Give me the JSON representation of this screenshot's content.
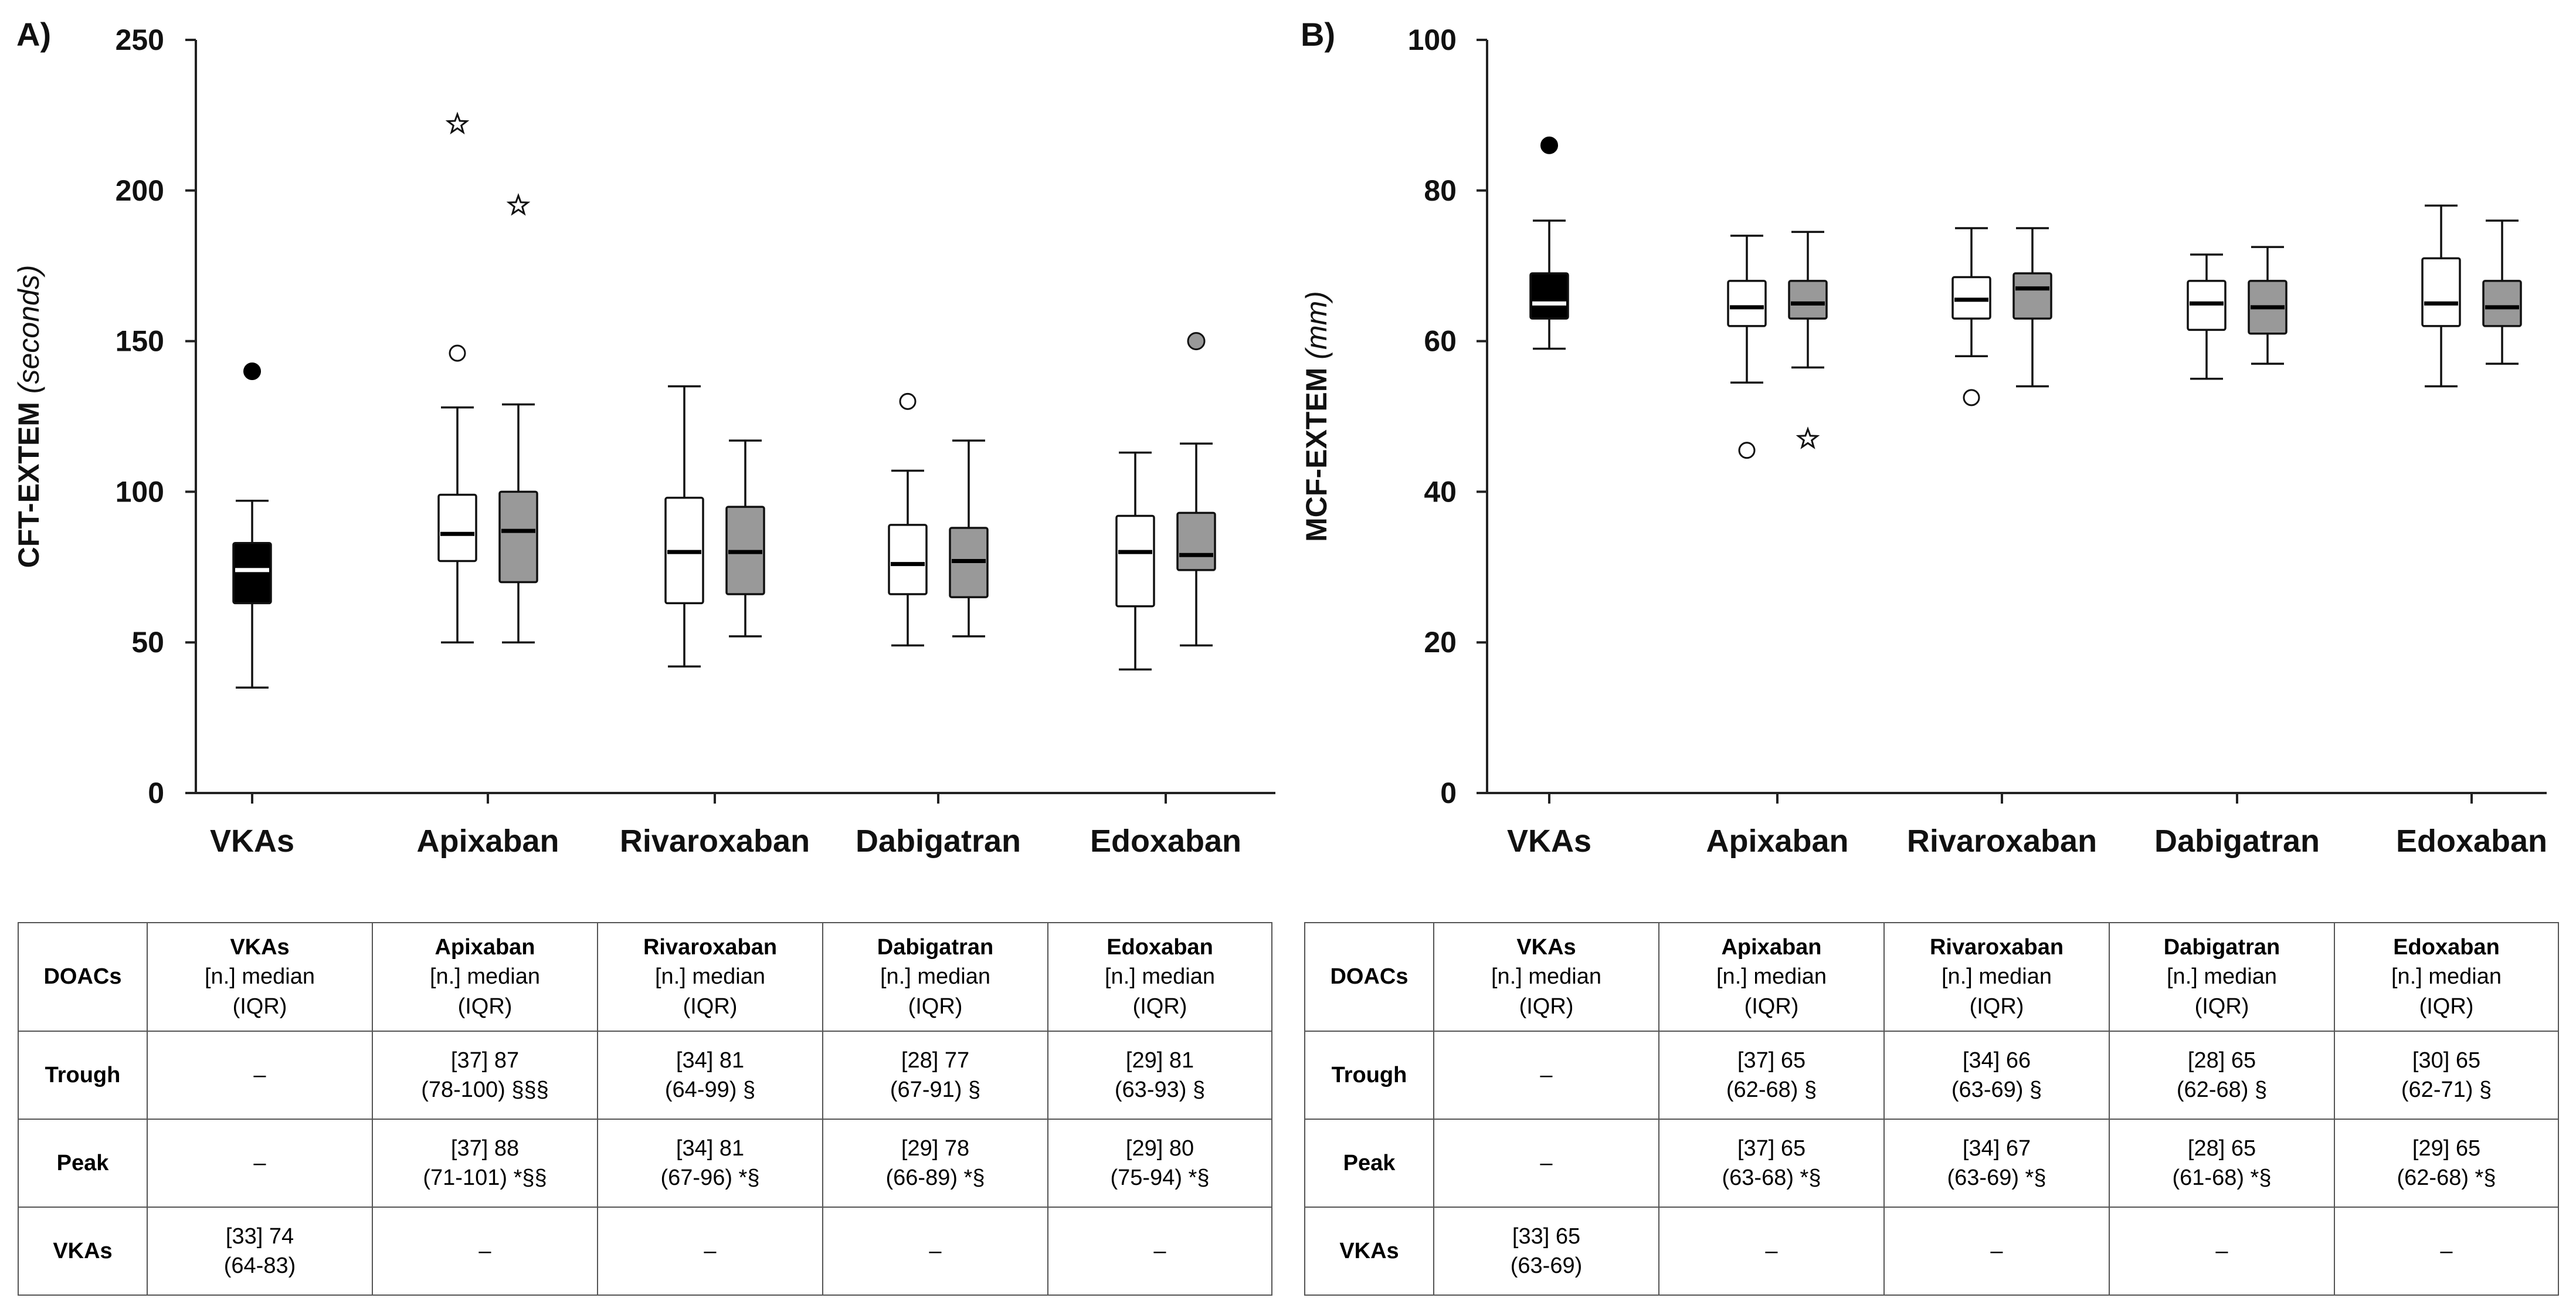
{
  "colors": {
    "vka": "#000000",
    "trough": "#ffffff",
    "peak": "#999999",
    "axis": "#222222"
  },
  "icons": {
    "star_outlier": "star-icon",
    "open_outlier": "circle-icon",
    "filled_outlier": "dot-icon"
  },
  "chart_data": [
    {
      "type": "boxplot",
      "panel_label": "A)",
      "ylabel_main": "CFT-EXTEM",
      "ylabel_unit": "(seconds)",
      "xlabel": "",
      "ylim": [
        0,
        250
      ],
      "yticks": [
        0,
        50,
        100,
        150,
        200,
        250
      ],
      "categories": [
        "VKAs",
        "Apixaban",
        "Rivaroxaban",
        "Dabigatran",
        "Edoxaban"
      ],
      "series": [
        {
          "name": "VKAs",
          "category": "VKAs",
          "fill": "vka",
          "min": 35,
          "q1": 63,
          "median": 74,
          "q3": 83,
          "max": 97,
          "outliers": [
            {
              "value": 140,
              "marker": "dot"
            }
          ]
        },
        {
          "name": "Apixaban trough",
          "category": "Apixaban",
          "fill": "trough",
          "min": 50,
          "q1": 77,
          "median": 86,
          "q3": 99,
          "max": 128,
          "outliers": [
            {
              "value": 146,
              "marker": "circle"
            },
            {
              "value": 222,
              "marker": "star"
            }
          ]
        },
        {
          "name": "Apixaban peak",
          "category": "Apixaban",
          "fill": "peak",
          "min": 50,
          "q1": 70,
          "median": 87,
          "q3": 100,
          "max": 129,
          "outliers": [
            {
              "value": 195,
              "marker": "star"
            }
          ]
        },
        {
          "name": "Rivaroxaban trough",
          "category": "Rivaroxaban",
          "fill": "trough",
          "min": 42,
          "q1": 63,
          "median": 80,
          "q3": 98,
          "max": 135,
          "outliers": []
        },
        {
          "name": "Rivaroxaban peak",
          "category": "Rivaroxaban",
          "fill": "peak",
          "min": 52,
          "q1": 66,
          "median": 80,
          "q3": 95,
          "max": 117,
          "outliers": []
        },
        {
          "name": "Dabigatran trough",
          "category": "Dabigatran",
          "fill": "trough",
          "min": 49,
          "q1": 66,
          "median": 76,
          "q3": 89,
          "max": 107,
          "outliers": [
            {
              "value": 130,
              "marker": "circle"
            }
          ]
        },
        {
          "name": "Dabigatran peak",
          "category": "Dabigatran",
          "fill": "peak",
          "min": 52,
          "q1": 65,
          "median": 77,
          "q3": 88,
          "max": 117,
          "outliers": []
        },
        {
          "name": "Edoxaban trough",
          "category": "Edoxaban",
          "fill": "trough",
          "min": 41,
          "q1": 62,
          "median": 80,
          "q3": 92,
          "max": 113,
          "outliers": []
        },
        {
          "name": "Edoxaban peak",
          "category": "Edoxaban",
          "fill": "peak",
          "min": 49,
          "q1": 74,
          "median": 79,
          "q3": 93,
          "max": 116,
          "outliers": [
            {
              "value": 150,
              "marker": "gray-dot"
            }
          ]
        }
      ]
    },
    {
      "type": "boxplot",
      "panel_label": "B)",
      "ylabel_main": "MCF-EXTEM",
      "ylabel_unit": "(mm)",
      "xlabel": "",
      "ylim": [
        0,
        100
      ],
      "yticks": [
        0,
        20,
        40,
        60,
        80,
        100
      ],
      "categories": [
        "VKAs",
        "Apixaban",
        "Rivaroxaban",
        "Dabigatran",
        "Edoxaban"
      ],
      "series": [
        {
          "name": "VKAs",
          "category": "VKAs",
          "fill": "vka",
          "min": 59,
          "q1": 63,
          "median": 65,
          "q3": 69,
          "max": 76,
          "outliers": [
            {
              "value": 86,
              "marker": "dot"
            }
          ]
        },
        {
          "name": "Apixaban trough",
          "category": "Apixaban",
          "fill": "trough",
          "min": 54.5,
          "q1": 62,
          "median": 64.5,
          "q3": 68,
          "max": 74,
          "outliers": [
            {
              "value": 45.5,
              "marker": "circle"
            }
          ]
        },
        {
          "name": "Apixaban peak",
          "category": "Apixaban",
          "fill": "peak",
          "min": 56.5,
          "q1": 63,
          "median": 65,
          "q3": 68,
          "max": 74.5,
          "outliers": [
            {
              "value": 47,
              "marker": "star"
            }
          ]
        },
        {
          "name": "Rivaroxaban trough",
          "category": "Rivaroxaban",
          "fill": "trough",
          "min": 58,
          "q1": 63,
          "median": 65.5,
          "q3": 68.5,
          "max": 75,
          "outliers": [
            {
              "value": 52.5,
              "marker": "circle"
            }
          ]
        },
        {
          "name": "Rivaroxaban peak",
          "category": "Rivaroxaban",
          "fill": "peak",
          "min": 54,
          "q1": 63,
          "median": 67,
          "q3": 69,
          "max": 75,
          "outliers": []
        },
        {
          "name": "Dabigatran trough",
          "category": "Dabigatran",
          "fill": "trough",
          "min": 55,
          "q1": 61.5,
          "median": 65,
          "q3": 68,
          "max": 71.5,
          "outliers": []
        },
        {
          "name": "Dabigatran peak",
          "category": "Dabigatran",
          "fill": "peak",
          "min": 57,
          "q1": 61,
          "median": 64.5,
          "q3": 68,
          "max": 72.5,
          "outliers": []
        },
        {
          "name": "Edoxaban trough",
          "category": "Edoxaban",
          "fill": "trough",
          "min": 54,
          "q1": 62,
          "median": 65,
          "q3": 71,
          "max": 78,
          "outliers": []
        },
        {
          "name": "Edoxaban peak",
          "category": "Edoxaban",
          "fill": "peak",
          "min": 57,
          "q1": 62,
          "median": 64.5,
          "q3": 68,
          "max": 76,
          "outliers": []
        }
      ]
    }
  ],
  "tables": [
    {
      "header": [
        {
          "name": "DOACs",
          "sub": "",
          "sub2": ""
        },
        {
          "name": "VKAs",
          "sub": "[n.] median",
          "sub2": "(IQR)"
        },
        {
          "name": "Apixaban",
          "sub": "[n.] median",
          "sub2": "(IQR)"
        },
        {
          "name": "Rivaroxaban",
          "sub": "[n.] median",
          "sub2": "(IQR)"
        },
        {
          "name": "Dabigatran",
          "sub": "[n.] median",
          "sub2": "(IQR)"
        },
        {
          "name": "Edoxaban",
          "sub": "[n.] median",
          "sub2": "(IQR)"
        }
      ],
      "rows": [
        {
          "label": "Trough",
          "cells": [
            {
              "l1": "–",
              "l2": ""
            },
            {
              "l1": "[37] 87",
              "l2": "(78-100) §§§"
            },
            {
              "l1": "[34] 81",
              "l2": "(64-99) §"
            },
            {
              "l1": "[28] 77",
              "l2": "(67-91) §"
            },
            {
              "l1": "[29] 81",
              "l2": "(63-93) §"
            }
          ]
        },
        {
          "label": "Peak",
          "cells": [
            {
              "l1": "–",
              "l2": ""
            },
            {
              "l1": "[37] 88",
              "l2": "(71-101) *§§"
            },
            {
              "l1": "[34] 81",
              "l2": "(67-96) *§"
            },
            {
              "l1": "[29] 78",
              "l2": "(66-89) *§"
            },
            {
              "l1": "[29] 80",
              "l2": "(75-94) *§"
            }
          ]
        },
        {
          "label": "VKAs",
          "cells": [
            {
              "l1": "[33] 74",
              "l2": "(64-83)"
            },
            {
              "l1": "–",
              "l2": ""
            },
            {
              "l1": "–",
              "l2": ""
            },
            {
              "l1": "–",
              "l2": ""
            },
            {
              "l1": "–",
              "l2": ""
            }
          ]
        }
      ]
    },
    {
      "header": [
        {
          "name": "DOACs",
          "sub": "",
          "sub2": ""
        },
        {
          "name": "VKAs",
          "sub": "[n.] median",
          "sub2": "(IQR)"
        },
        {
          "name": "Apixaban",
          "sub": "[n.] median",
          "sub2": "(IQR)"
        },
        {
          "name": "Rivaroxaban",
          "sub": "[n.] median",
          "sub2": "(IQR)"
        },
        {
          "name": "Dabigatran",
          "sub": "[n.] median",
          "sub2": "(IQR)"
        },
        {
          "name": "Edoxaban",
          "sub": "[n.] median",
          "sub2": "(IQR)"
        }
      ],
      "rows": [
        {
          "label": "Trough",
          "cells": [
            {
              "l1": "–",
              "l2": ""
            },
            {
              "l1": "[37] 65",
              "l2": "(62-68) §"
            },
            {
              "l1": "[34] 66",
              "l2": "(63-69) §"
            },
            {
              "l1": "[28] 65",
              "l2": "(62-68) §"
            },
            {
              "l1": "[30] 65",
              "l2": "(62-71) §"
            }
          ]
        },
        {
          "label": "Peak",
          "cells": [
            {
              "l1": "–",
              "l2": ""
            },
            {
              "l1": "[37] 65",
              "l2": "(63-68) *§"
            },
            {
              "l1": "[34] 67",
              "l2": "(63-69) *§"
            },
            {
              "l1": "[28] 65",
              "l2": "(61-68) *§"
            },
            {
              "l1": "[29] 65",
              "l2": "(62-68) *§"
            }
          ]
        },
        {
          "label": "VKAs",
          "cells": [
            {
              "l1": "[33] 65",
              "l2": "(63-69)"
            },
            {
              "l1": "–",
              "l2": ""
            },
            {
              "l1": "–",
              "l2": ""
            },
            {
              "l1": "–",
              "l2": ""
            },
            {
              "l1": "–",
              "l2": ""
            }
          ]
        }
      ]
    }
  ]
}
